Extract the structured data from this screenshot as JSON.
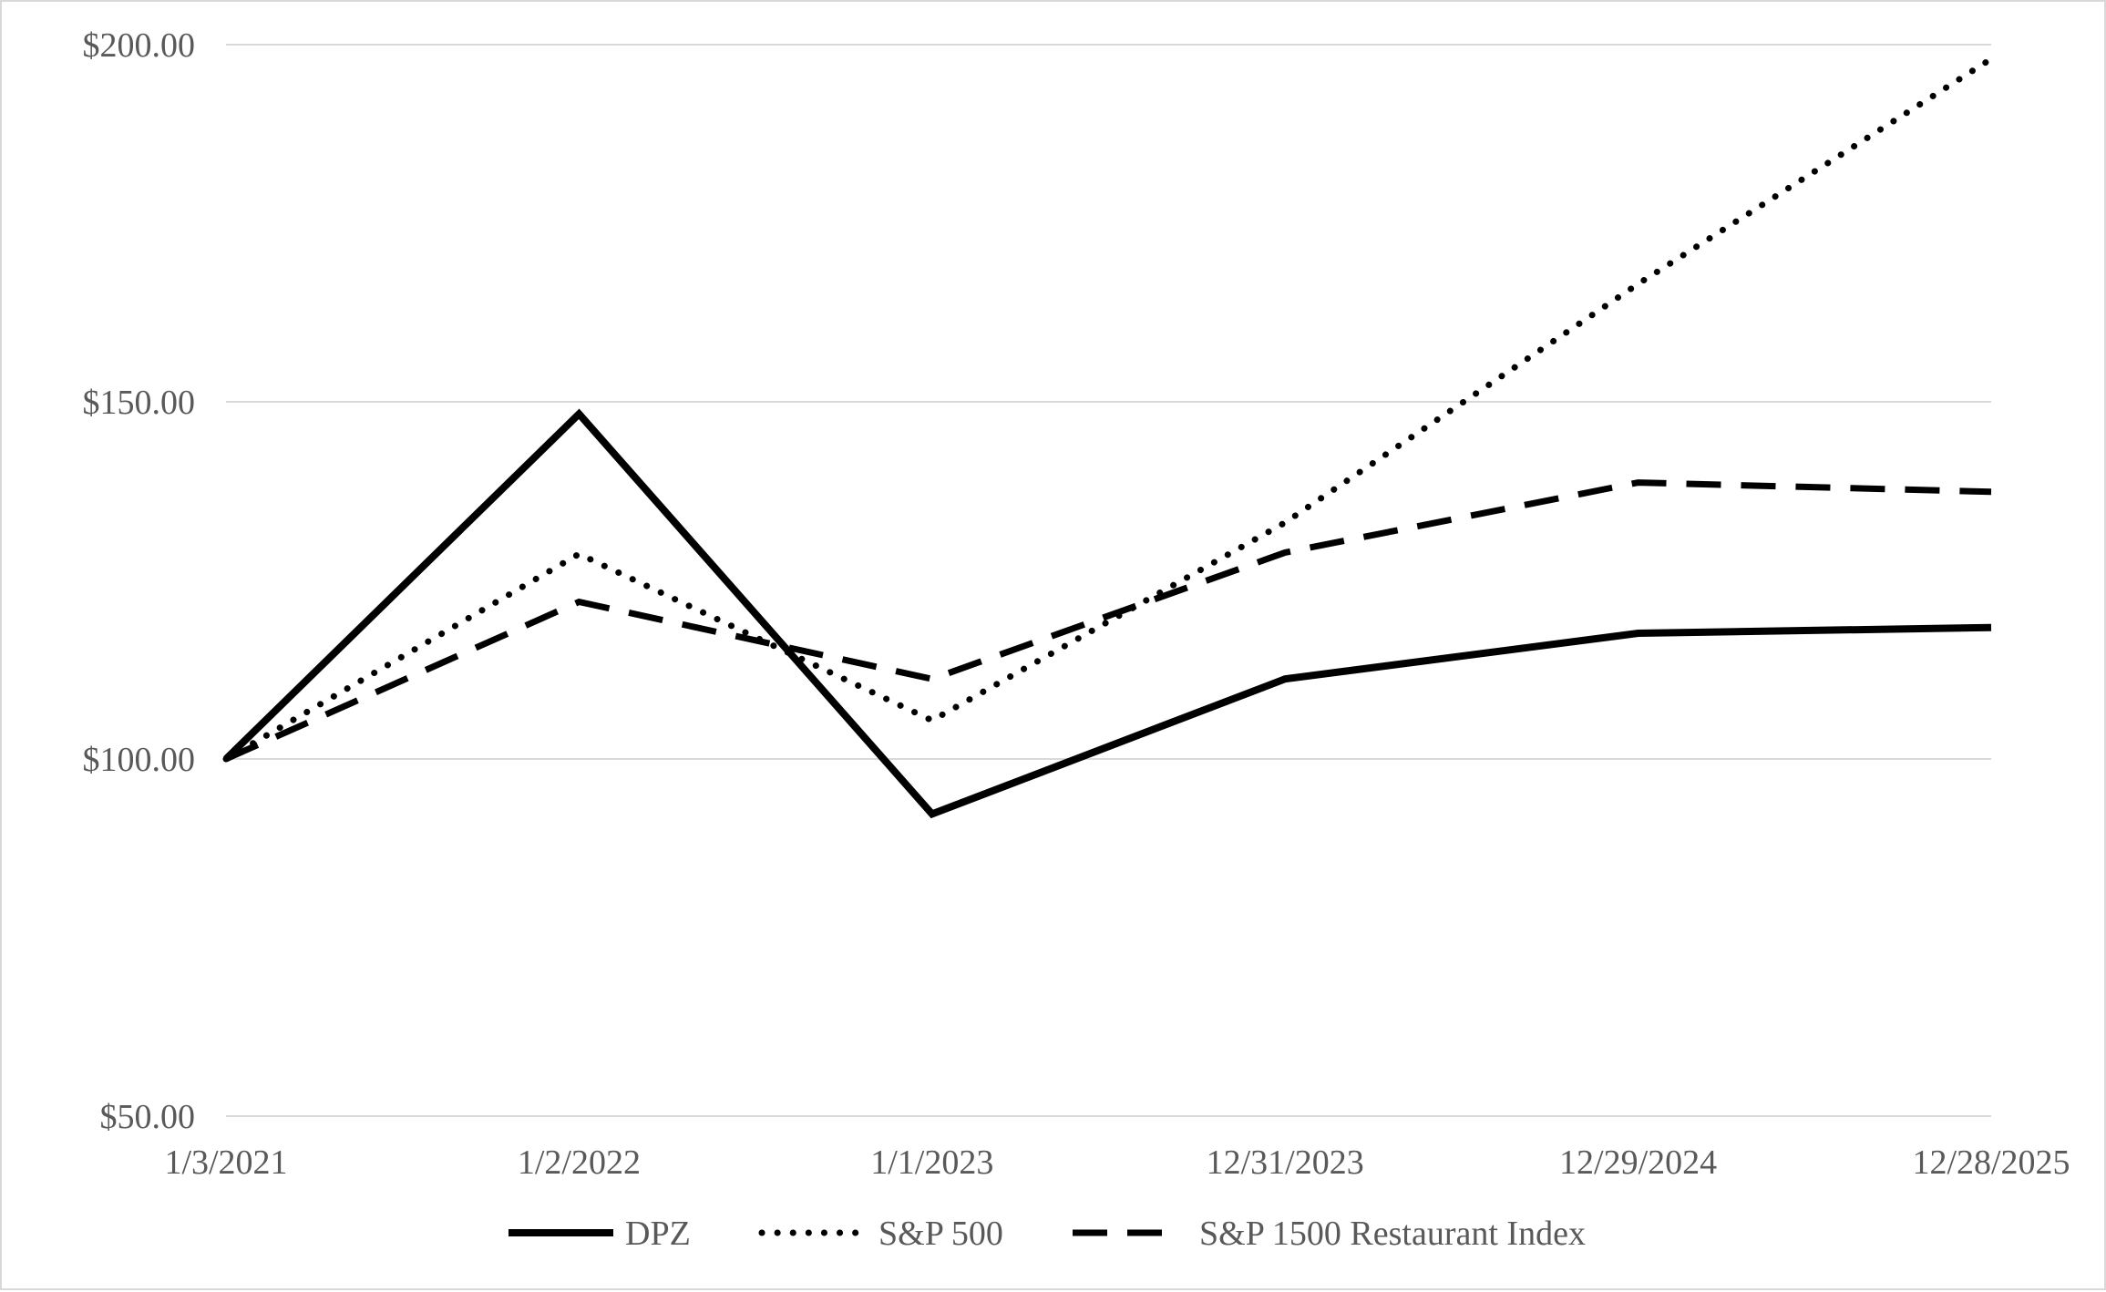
{
  "chart_data": {
    "type": "line",
    "categories": [
      "1/3/2021",
      "1/2/2022",
      "1/1/2023",
      "12/31/2023",
      "12/29/2024",
      "12/28/2025"
    ],
    "series": [
      {
        "name": "DPZ",
        "values": [
          100.0,
          148.3,
          92.3,
          111.2,
          117.6,
          118.4
        ],
        "line_style": "solid",
        "color": "#000000"
      },
      {
        "name": "S&P 500",
        "values": [
          100.0,
          128.7,
          105.4,
          133.1,
          166.5,
          198.0
        ],
        "line_style": "dotted",
        "color": "#000000"
      },
      {
        "name": "S&P 1500 Restaurant Index",
        "values": [
          100.0,
          122.0,
          111.2,
          128.9,
          138.7,
          137.4
        ],
        "line_style": "dashed",
        "color": "#000000"
      }
    ],
    "y_ticks": [
      "$50.00",
      "$100.00",
      "$150.00",
      "$200.00"
    ],
    "ylim": [
      50,
      200
    ],
    "grid": "horizontal",
    "legend_position": "bottom",
    "gridline_color": "#d9d9d9",
    "text_color": "#595959"
  }
}
